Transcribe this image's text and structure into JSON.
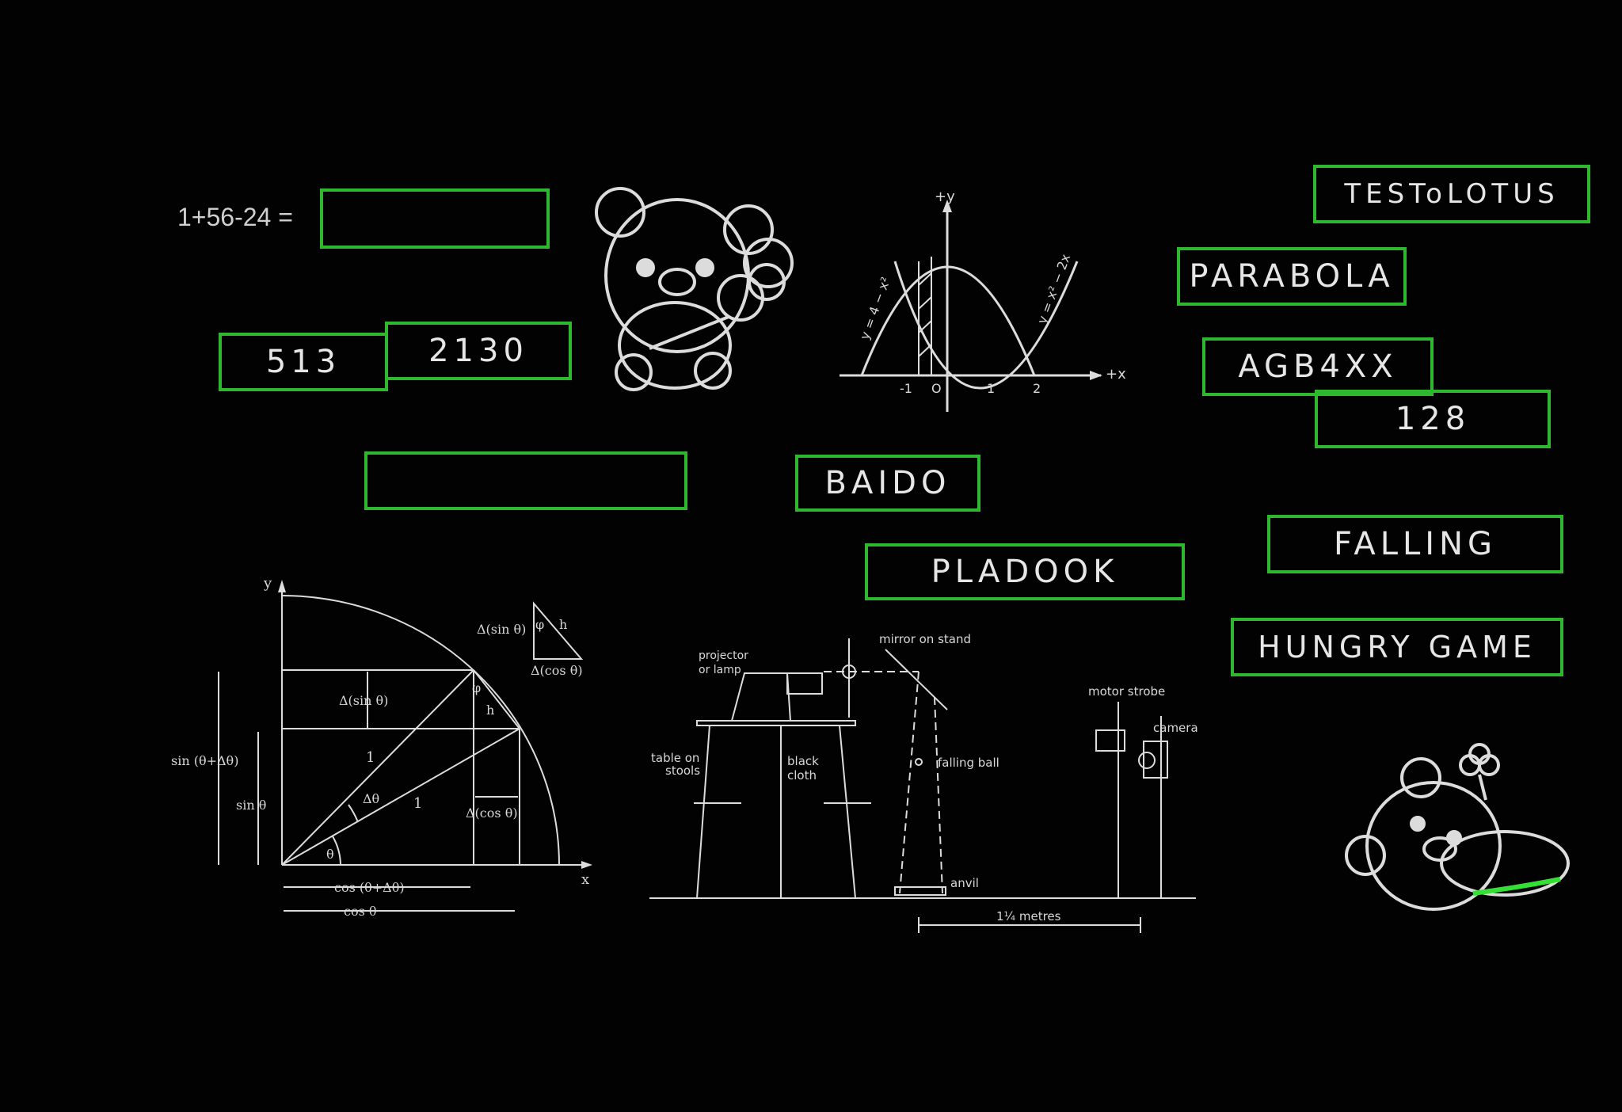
{
  "equation": {
    "text": "1+56-24 ="
  },
  "boxes": {
    "answer_blank": "",
    "num_513": "513",
    "num_2130": "2130",
    "empty_long": "",
    "baido": "BAIDO",
    "pladook": "PLADOOK",
    "testolotus": "TESToLOTUS",
    "parabola": "PARABOLA",
    "agb4xx": "AGB4XX",
    "num_128": "128",
    "falling": "FALLING",
    "hungry_game": "HUNGRY GAME"
  },
  "parabola_graph": {
    "y_axis": "+y",
    "x_axis": "+x",
    "curve1": "y = 4 − x²",
    "curve2": "y = x² − 2x",
    "tick_neg1": "-1",
    "origin": "O",
    "tick_1": "1",
    "tick_2": "2"
  },
  "trig_diagram": {
    "y": "y",
    "x": "x",
    "d_sin_top": "Δ(sin θ)",
    "phi_small": "φ",
    "h_small": "h",
    "d_cos_top": "Δ(cos θ)",
    "d_sin_mid": "Δ(sin θ)",
    "phi": "φ",
    "h": "h",
    "one_a": "1",
    "one_b": "1",
    "dtheta": "Δθ",
    "theta": "θ",
    "sin_sum": "sin (θ+Δθ)",
    "sin_theta": "sin θ",
    "d_cos_mid": "Δ(cos θ)",
    "cos_sum": "cos (θ+Δθ)",
    "cos_theta": "cos θ"
  },
  "apparatus": {
    "projector": "projector",
    "lamp": "or lamp",
    "mirror": "mirror on stand",
    "table": "table on",
    "stools": "stools",
    "black": "black",
    "cloth": "cloth",
    "falling_ball": "falling ball",
    "anvil": "anvil",
    "motor_strobe": "motor strobe",
    "camera": "camera",
    "metres": "1¼ metres"
  },
  "colors": {
    "box_border": "#2db82d",
    "background": "#020202",
    "line_art": "#dcdcdc"
  }
}
